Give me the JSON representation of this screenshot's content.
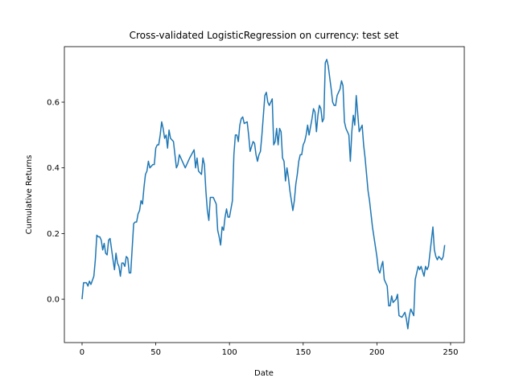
{
  "chart_data": {
    "type": "line",
    "title": "Cross-validated LogisticRegression on currency: test set",
    "xlabel": "Date",
    "ylabel": "Cumulative Returns",
    "xlim": [
      -12,
      259.3
    ],
    "ylim": [
      -0.132,
      0.769
    ],
    "xticks": [
      0,
      50,
      100,
      150,
      200,
      250
    ],
    "yticks": [
      {
        "value": 0,
        "label": "0.0"
      },
      0.2,
      0.4,
      0.6
    ],
    "series": [
      {
        "color": "#1f77b4",
        "x": [
          0,
          1,
          3,
          4,
          5,
          6,
          8,
          9,
          10,
          11,
          12,
          13,
          14,
          15,
          16,
          17,
          18,
          19,
          21,
          22,
          23,
          24,
          25,
          26,
          27,
          28,
          29,
          30,
          31,
          32,
          33,
          35,
          36,
          37,
          38,
          39,
          40,
          41,
          42,
          43,
          44,
          45,
          46,
          48,
          49,
          50,
          51,
          52,
          53,
          54,
          55,
          56,
          57,
          58,
          59,
          60,
          62,
          63,
          64,
          65,
          66,
          67,
          68,
          70,
          71,
          73,
          76,
          77,
          78,
          79,
          81,
          82,
          83,
          84,
          85,
          86,
          87,
          89,
          90,
          91,
          92,
          93,
          94,
          95,
          96,
          97,
          98,
          99,
          100,
          102,
          103,
          104,
          105,
          106,
          107,
          108,
          109,
          110,
          112,
          113,
          114,
          116,
          117,
          118,
          119,
          120,
          121,
          122,
          123,
          124,
          125,
          126,
          127,
          129,
          130,
          131,
          132,
          133,
          134,
          135,
          136,
          137,
          138,
          139,
          140,
          141,
          143,
          144,
          145,
          146,
          147,
          148,
          149,
          150,
          151,
          152,
          153,
          154,
          156,
          157,
          158,
          159,
          160,
          161,
          162,
          163,
          164,
          165,
          166,
          167,
          169,
          170,
          171,
          172,
          173,
          175,
          176,
          177,
          178,
          179,
          181,
          182,
          183,
          184,
          185,
          186,
          188,
          189,
          190,
          191,
          192,
          194,
          195,
          196,
          197,
          198,
          200,
          201,
          202,
          203,
          204,
          205,
          207,
          208,
          209,
          210,
          211,
          213,
          214,
          215,
          217,
          219,
          220,
          221,
          222,
          223,
          225,
          226,
          227,
          228,
          229,
          230,
          232,
          233,
          234,
          235,
          236,
          238,
          239,
          240,
          241,
          242,
          244,
          245,
          246
        ],
        "values": [
          0.0,
          0.05,
          0.05,
          0.04,
          0.055,
          0.045,
          0.07,
          0.12,
          0.195,
          0.19,
          0.19,
          0.18,
          0.15,
          0.17,
          0.14,
          0.135,
          0.18,
          0.185,
          0.12,
          0.09,
          0.14,
          0.11,
          0.1,
          0.07,
          0.11,
          0.11,
          0.1,
          0.13,
          0.125,
          0.08,
          0.08,
          0.23,
          0.235,
          0.235,
          0.26,
          0.27,
          0.3,
          0.29,
          0.34,
          0.38,
          0.39,
          0.42,
          0.4,
          0.41,
          0.41,
          0.46,
          0.47,
          0.47,
          0.5,
          0.54,
          0.52,
          0.49,
          0.5,
          0.46,
          0.515,
          0.49,
          0.48,
          0.44,
          0.4,
          0.41,
          0.44,
          0.43,
          0.42,
          0.4,
          0.41,
          0.43,
          0.455,
          0.4,
          0.43,
          0.39,
          0.38,
          0.43,
          0.41,
          0.33,
          0.27,
          0.24,
          0.31,
          0.31,
          0.3,
          0.29,
          0.21,
          0.19,
          0.165,
          0.22,
          0.21,
          0.25,
          0.275,
          0.25,
          0.25,
          0.3,
          0.44,
          0.5,
          0.5,
          0.48,
          0.53,
          0.55,
          0.555,
          0.535,
          0.54,
          0.5,
          0.45,
          0.48,
          0.475,
          0.44,
          0.42,
          0.44,
          0.45,
          0.5,
          0.56,
          0.62,
          0.63,
          0.6,
          0.59,
          0.61,
          0.47,
          0.48,
          0.52,
          0.47,
          0.52,
          0.51,
          0.43,
          0.42,
          0.36,
          0.4,
          0.37,
          0.33,
          0.27,
          0.3,
          0.35,
          0.38,
          0.42,
          0.44,
          0.44,
          0.47,
          0.48,
          0.5,
          0.53,
          0.5,
          0.55,
          0.58,
          0.57,
          0.51,
          0.56,
          0.59,
          0.58,
          0.54,
          0.55,
          0.72,
          0.73,
          0.71,
          0.64,
          0.6,
          0.59,
          0.59,
          0.62,
          0.64,
          0.665,
          0.65,
          0.54,
          0.52,
          0.5,
          0.42,
          0.51,
          0.56,
          0.53,
          0.62,
          0.51,
          0.52,
          0.53,
          0.47,
          0.43,
          0.33,
          0.3,
          0.26,
          0.22,
          0.19,
          0.13,
          0.09,
          0.08,
          0.1,
          0.115,
          0.06,
          0.04,
          -0.02,
          -0.02,
          0.01,
          -0.01,
          0.0,
          0.015,
          -0.05,
          -0.055,
          -0.04,
          -0.06,
          -0.09,
          -0.05,
          -0.03,
          -0.05,
          0.06,
          0.08,
          0.1,
          0.09,
          0.1,
          0.07,
          0.1,
          0.09,
          0.1,
          0.14,
          0.22,
          0.15,
          0.13,
          0.12,
          0.13,
          0.12,
          0.13,
          0.165
        ]
      }
    ]
  }
}
